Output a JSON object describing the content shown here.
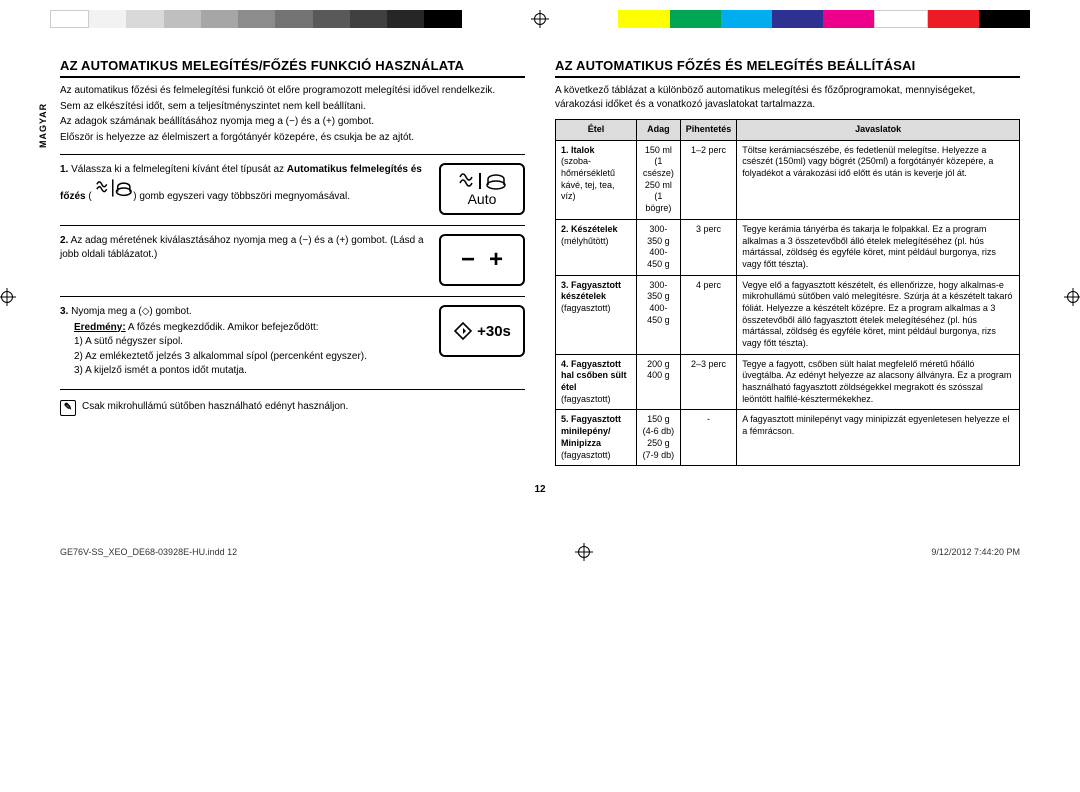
{
  "color_bar": {
    "left": [
      "#ffffff",
      "#f2f2f2",
      "#d9d9d9",
      "#bfbfbf",
      "#a6a6a6",
      "#8c8c8c",
      "#737373",
      "#595959",
      "#404040",
      "#262626",
      "#000000"
    ],
    "right": [
      "#ffff00",
      "#00a651",
      "#00aeef",
      "#2e3192",
      "#ec008c",
      "#ffffff",
      "#ed1c24",
      "#000000"
    ]
  },
  "side_label": "MAGYAR",
  "left": {
    "heading": "AZ AUTOMATIKUS MELEGÍTÉS/FŐZÉS FUNKCIÓ HASZNÁLATA",
    "p1": "Az automatikus főzési és felmelegítési funkció öt előre programozott melegítési idővel rendelkezik.",
    "p2": "Sem az elkészítési időt, sem a teljesítményszintet nem kell beállítani.",
    "p3": "Az adagok számának beállításához nyomja meg a (−) és a (+) gombot.",
    "p4": "Először is helyezze az élelmiszert a forgótányér közepére, és csukja be az ajtót.",
    "icon1_label": "Auto",
    "icon3_label": "+30s",
    "step1_a": "1.",
    "step1_b": "Válassza ki a felmelegíteni kívánt étel típusát az",
    "step1_c": "Automatikus felmelegítés és főzés",
    "step1_d": "gomb egyszeri vagy többszöri megnyomásával.",
    "step2_a": "2.",
    "step2_b": "Az adag méretének kiválasztásához nyomja meg a (−) és a (+) gombot. (Lásd a jobb oldali táblázatot.)",
    "step3_a": "3.",
    "step3_b": "Nyomja meg a (◇) gombot.",
    "step3_res_label": "Eredmény:",
    "step3_res": "A főzés megkezdődik. Amikor befejeződött:",
    "step3_r1": "1)  A sütő négyszer sípol.",
    "step3_r2": "2)  Az emlékeztető jelzés 3 alkalommal sípol (percenként egyszer).",
    "step3_r3": "3)  A kijelző ismét a pontos időt mutatja.",
    "note": "Csak mikrohullámú sütőben használható edényt használjon."
  },
  "right": {
    "heading": "AZ AUTOMATIKUS FŐZÉS ÉS MELEGÍTÉS BEÁLLÍTÁSAI",
    "intro": "A következő táblázat a különböző automatikus melegítési és főzőprogramokat, mennyiségeket, várakozási időket és a vonatkozó javaslatokat tartalmazza.",
    "th": {
      "c1": "Étel",
      "c2": "Adag",
      "c3": "Pihentetés",
      "c4": "Javaslatok"
    },
    "rows": [
      {
        "n": "1.",
        "name": "Italok",
        "sub": "(szoba-hőmérsékletű kávé, tej, tea, víz)",
        "portion": "150 ml\n(1 csésze)\n250 ml\n(1 bögre)",
        "rest": "1–2 perc",
        "tip": "Töltse kerámiacsészébe, és fedetlenül melegítse. Helyezze a csészét (150ml) vagy bögrét (250ml) a forgótányér közepére, a folyadékot a várakozási idő előtt és után is keverje jól át."
      },
      {
        "n": "2.",
        "name": "Készételek",
        "sub": "(mélyhűtött)",
        "portion": "300-350 g\n400-450 g",
        "rest": "3 perc",
        "tip": "Tegye kerámia tányérba és takarja le folpakkal. Ez a program alkalmas a 3 összetevőből álló ételek melegítéséhez (pl. hús mártással, zöldség és egyféle köret, mint például burgonya, rizs vagy főtt tészta)."
      },
      {
        "n": "3.",
        "name": "Fagyasztott készételek",
        "sub": "(fagyasztott)",
        "portion": "300-350 g\n400-450 g",
        "rest": "4 perc",
        "tip": "Vegye elő a fagyasztott készételt, és ellenőrizze, hogy alkalmas-e mikrohullámú sütőben való melegítésre. Szúrja át a készételt takaró fóliát. Helyezze a készételt középre. Ez a program alkalmas a 3 összetevőből álló fagyasztott ételek melegítéséhez (pl. hús mártással, zöldség és egyféle köret, mint például burgonya, rizs vagy főtt tészta)."
      },
      {
        "n": "4.",
        "name": "Fagyasztott hal csőben sült étel",
        "sub": "(fagyasztott)",
        "portion": "200 g\n400 g",
        "rest": "2–3 perc",
        "tip": "Tegye a fagyott, csőben sült halat megfelelő méretű hőálló üvegtálba. Az edényt helyezze az alacsony állványra. Ez a program használható fagyasztott zöldségekkel megrakott és szósszal leöntött halfilé-késztermékekhez."
      },
      {
        "n": "5.",
        "name": "Fagyasztott minilepény/ Minipizza",
        "sub": "(fagyasztott)",
        "portion": "150 g\n(4-6 db)\n250 g\n(7-9 db)",
        "rest": "-",
        "tip": "A fagyasztott minilepényt vagy minipizzát egyenletesen helyezze el a fémrácson."
      }
    ]
  },
  "page_number": "12",
  "footer": {
    "file": "GE76V-SS_XEO_DE68-03928E-HU.indd   12",
    "date": "9/12/2012   7:44:20 PM"
  }
}
